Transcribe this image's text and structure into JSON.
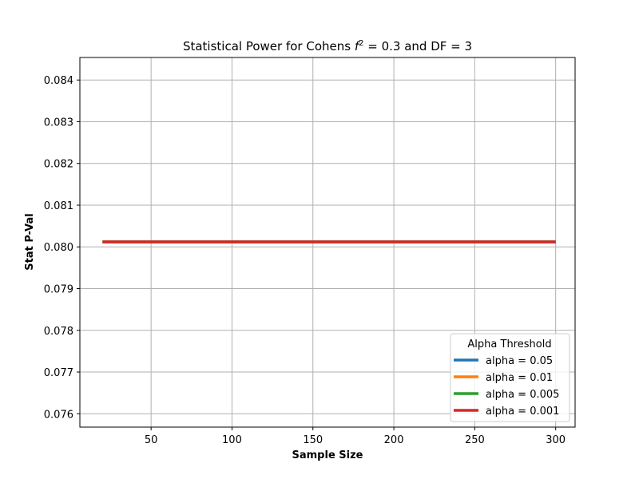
{
  "chart_data": {
    "type": "line",
    "title_prefix": "Statistical Power for Cohens ",
    "title_symbol": "f",
    "title_superscript": "2",
    "title_suffix": " = 0.3 and DF = 3",
    "xlabel": "Sample Size",
    "ylabel": "Stat P-Val",
    "xlim": [
      6,
      312
    ],
    "ylim": [
      0.07568,
      0.08454
    ],
    "x_ticks": [
      50,
      100,
      150,
      200,
      250,
      300
    ],
    "y_ticks": [
      "0.076",
      "0.077",
      "0.078",
      "0.079",
      "0.080",
      "0.081",
      "0.082",
      "0.083",
      "0.084"
    ],
    "grid": true,
    "legend": {
      "title": "Alpha Threshold",
      "placement": "lower right"
    },
    "x": [
      20,
      300
    ],
    "series": [
      {
        "name": "alpha = 0.05",
        "color": "#1f77b4",
        "values": [
          0.08012,
          0.08012
        ]
      },
      {
        "name": "alpha = 0.01",
        "color": "#ff7f0e",
        "values": [
          0.08012,
          0.08012
        ]
      },
      {
        "name": "alpha = 0.005",
        "color": "#2ca02c",
        "values": [
          0.08012,
          0.08012
        ]
      },
      {
        "name": "alpha = 0.001",
        "color": "#d62728",
        "values": [
          0.08012,
          0.08012
        ]
      }
    ]
  }
}
